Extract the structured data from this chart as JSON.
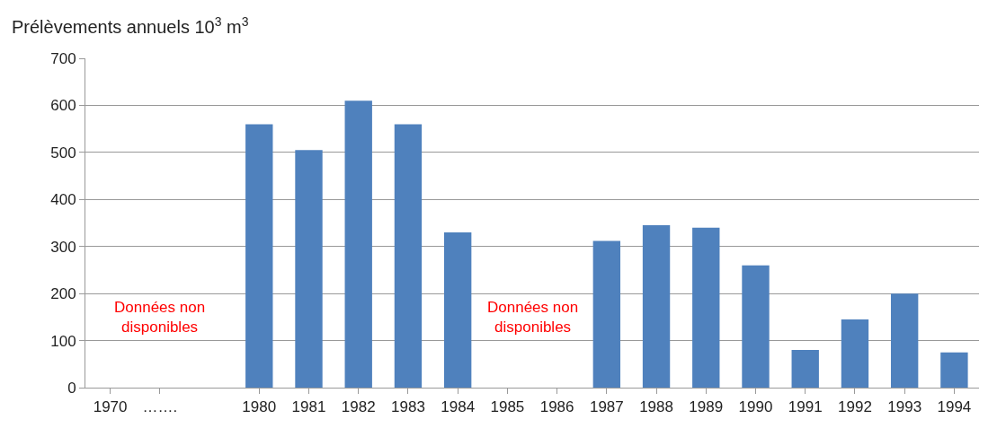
{
  "chart_data": {
    "type": "bar",
    "ylabel": "Prélèvements annuels 10$^{3}$ m$^{3}$",
    "categories": [
      "1970",
      "…….",
      null,
      "1980",
      "1981",
      "1982",
      "1983",
      "1984",
      "1985",
      "1986",
      "1987",
      "1988",
      "1989",
      "1990",
      "1991",
      "1992",
      "1993",
      "1994"
    ],
    "values": [
      null,
      null,
      null,
      560,
      505,
      610,
      560,
      330,
      null,
      null,
      312,
      345,
      340,
      260,
      80,
      145,
      200,
      75
    ],
    "color": "#4f81bd",
    "ylim": [
      0,
      700
    ],
    "yticks": [
      0,
      100,
      200,
      300,
      400,
      500,
      600,
      700
    ],
    "grid": "y",
    "legend": false,
    "annotations": [
      "Données non disponibles",
      "Données non disponibles"
    ]
  }
}
